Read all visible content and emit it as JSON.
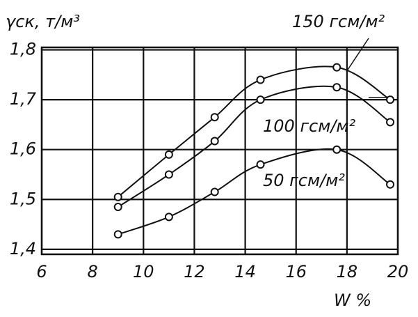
{
  "chart_data": {
    "type": "line",
    "y_label": "γск, т/м³",
    "x_label": "W %",
    "xlim": [
      6,
      20
    ],
    "xticks": [
      6,
      8,
      10,
      12,
      14,
      16,
      18,
      20
    ],
    "ylim": [
      1.39,
      1.805
    ],
    "yticks": [
      {
        "value": 1.4,
        "label": "1,4"
      },
      {
        "value": 1.5,
        "label": "1,5"
      },
      {
        "value": 1.6,
        "label": "1,6"
      },
      {
        "value": 1.7,
        "label": "1,7"
      },
      {
        "value": 1.8,
        "label": "1,8"
      }
    ],
    "grid": true,
    "series": [
      {
        "name": "150 гсм/м²",
        "color": "#111111",
        "x": [
          9,
          11,
          12.8,
          14.6,
          17.6,
          19.7
        ],
        "values": [
          1.505,
          1.59,
          1.665,
          1.74,
          1.765,
          1.7
        ]
      },
      {
        "name": "100 гсм/м²",
        "color": "#111111",
        "x": [
          9,
          11,
          12.8,
          14.6,
          17.6,
          19.7
        ],
        "values": [
          1.485,
          1.55,
          1.617,
          1.7,
          1.725,
          1.655
        ]
      },
      {
        "name": "50 гсм/м²",
        "color": "#111111",
        "x": [
          9,
          11,
          12.8,
          14.6,
          17.6,
          19.7
        ],
        "values": [
          1.43,
          1.465,
          1.515,
          1.57,
          1.6,
          1.53
        ]
      }
    ]
  }
}
